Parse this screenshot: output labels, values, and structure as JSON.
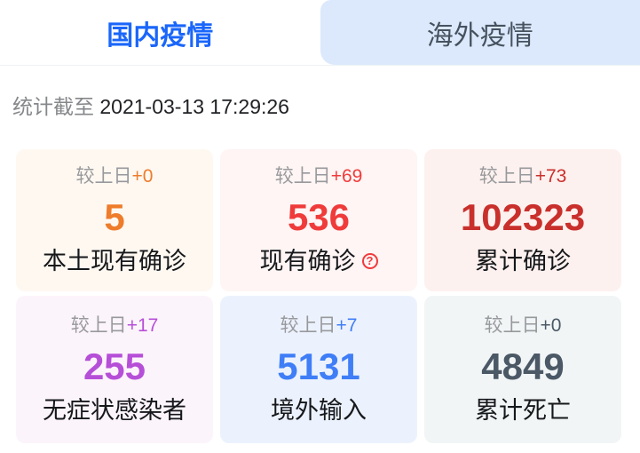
{
  "tabs": [
    {
      "label": "国内疫情",
      "active": true
    },
    {
      "label": "海外疫情",
      "active": false
    }
  ],
  "timestamp": {
    "prefix": "统计截至 ",
    "datetime": "2021-03-13 17:29:26"
  },
  "cards": [
    {
      "delta_prefix": "较上日",
      "delta": "+0",
      "value": "5",
      "label": "本土现有确诊",
      "color": "#ee7c2b",
      "bg": "#fef8f1",
      "has_help": false
    },
    {
      "delta_prefix": "较上日",
      "delta": "+69",
      "value": "536",
      "label": "现有确诊",
      "color": "#f03b3b",
      "bg": "#fef5f4",
      "has_help": true,
      "help_glyph": "?"
    },
    {
      "delta_prefix": "较上日",
      "delta": "+73",
      "value": "102323",
      "label": "累计确诊",
      "color": "#c9302c",
      "bg": "#fdf1ef",
      "has_help": false
    },
    {
      "delta_prefix": "较上日",
      "delta": "+17",
      "value": "255",
      "label": "无症状感染者",
      "color": "#b64fd8",
      "bg": "#fcf4fb",
      "has_help": false
    },
    {
      "delta_prefix": "较上日",
      "delta": "+7",
      "value": "5131",
      "label": "境外输入",
      "color": "#3f7ef7",
      "bg": "#ecf2fd",
      "has_help": false
    },
    {
      "delta_prefix": "较上日",
      "delta": "+0",
      "value": "4849",
      "label": "累计死亡",
      "color": "#4b5866",
      "bg": "#f1f5f6",
      "has_help": false
    }
  ],
  "colors": {
    "active_tab_text": "#1a66fa",
    "inactive_tab_bg": "#dce9fc",
    "inactive_tab_text": "#46525e",
    "label_text": "#16181b",
    "delta_prefix_gray": "#98999c",
    "timestamp_gray": "#85878a"
  }
}
